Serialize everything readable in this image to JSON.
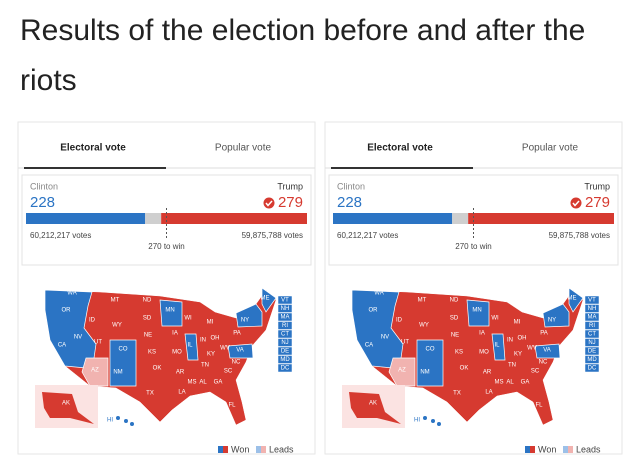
{
  "title": "Results of the election before and after the riots",
  "panels": [
    {
      "tabs": {
        "active": "Electoral vote",
        "inactive": "Popular vote"
      },
      "clinton": {
        "name": "Clinton",
        "electoral": 228,
        "votes": "60,212,217 votes"
      },
      "trump": {
        "name": "Trump",
        "electoral": 279,
        "votes": "59,875,788 votes"
      },
      "threshold": "270 to win",
      "legend": {
        "won": "Won",
        "leads": "Leads"
      }
    },
    {
      "tabs": {
        "active": "Electoral vote",
        "inactive": "Popular vote"
      },
      "clinton": {
        "name": "Clinton",
        "electoral": 228,
        "votes": "60,212,217 votes"
      },
      "trump": {
        "name": "Trump",
        "electoral": 279,
        "votes": "59,875,788 votes"
      },
      "threshold": "270 to win",
      "legend": {
        "won": "Won",
        "leads": "Leads"
      }
    }
  ],
  "states": [
    "WA",
    "OR",
    "CA",
    "NV",
    "ID",
    "MT",
    "WY",
    "UT",
    "AZ",
    "CO",
    "NM",
    "ND",
    "SD",
    "NE",
    "KS",
    "OK",
    "TX",
    "MN",
    "IA",
    "MO",
    "AR",
    "LA",
    "WI",
    "IL",
    "MS",
    "AL",
    "TN",
    "KY",
    "IN",
    "OH",
    "MI",
    "GA",
    "FL",
    "SC",
    "NC",
    "VA",
    "WV",
    "PA",
    "NY",
    "ME",
    "VT",
    "NH",
    "MA",
    "RI",
    "CT",
    "NJ",
    "DE",
    "MD",
    "DC",
    "AK",
    "HI"
  ]
}
